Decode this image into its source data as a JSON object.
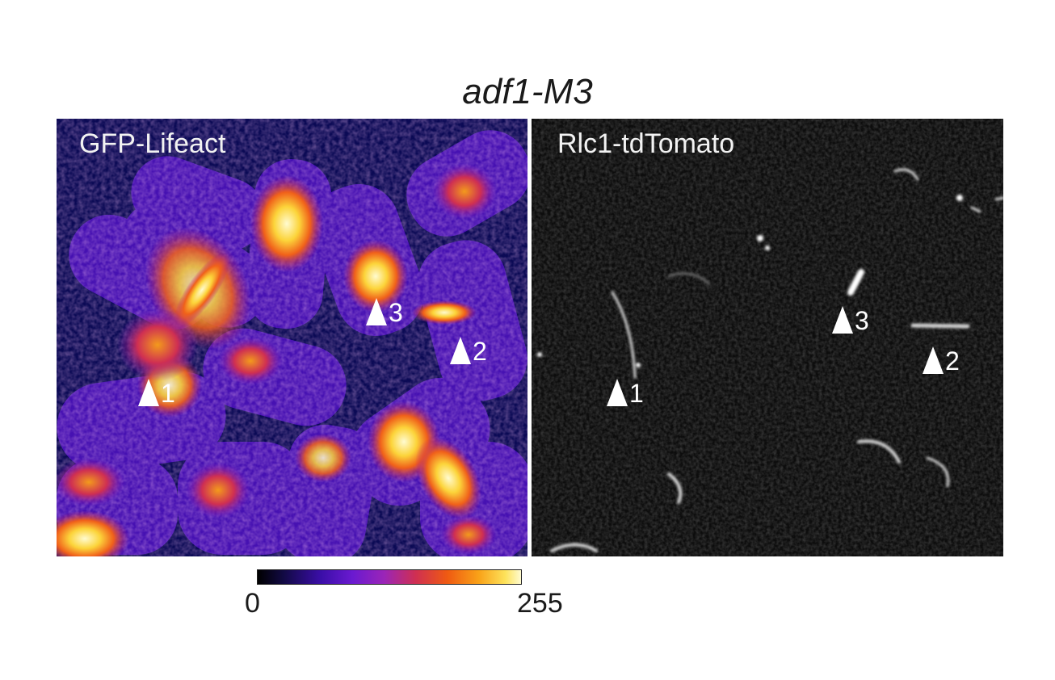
{
  "figure": {
    "title": "adf1-M3",
    "panels": [
      {
        "label": "GFP-Lifeact",
        "markers": [
          "1",
          "2",
          "3"
        ]
      },
      {
        "label": "Rlc1-tdTomato",
        "markers": [
          "1",
          "2",
          "3"
        ]
      }
    ],
    "colorbar": {
      "min_label": "0",
      "max_label": "255",
      "colormap": "fire"
    }
  },
  "colors": {
    "background": "#ffffff",
    "left_panel_bg": "#0b0a55",
    "right_panel_bg": "#0d0d0d",
    "marker": "#ffffff"
  }
}
